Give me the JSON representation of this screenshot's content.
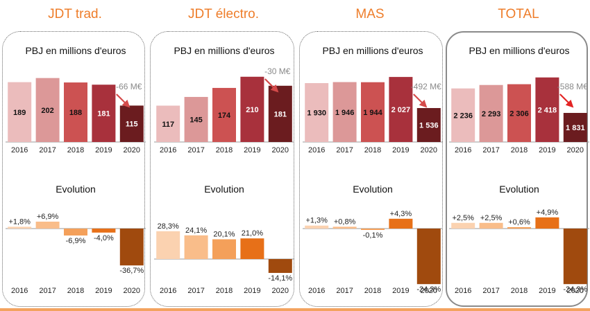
{
  "panels": [
    {
      "title": "JDT trad.",
      "pbj_title": "PBJ en millions d'euros",
      "evo_title": "Evolution",
      "delta_label": "-66 M€",
      "years": [
        "2016",
        "2017",
        "2018",
        "2019",
        "2020"
      ],
      "pbj_labels": [
        "189",
        "202",
        "188",
        "181",
        "115"
      ],
      "evo_labels": [
        "+1,8%",
        "+6,9%",
        "-6,9%",
        "-4,0%",
        "-36,7%"
      ]
    },
    {
      "title": "JDT électro.",
      "pbj_title": "PBJ en millions d'euros",
      "evo_title": "Evolution",
      "delta_label": "-30 M€",
      "years": [
        "2016",
        "2017",
        "2018",
        "2019",
        "2020"
      ],
      "pbj_labels": [
        "117",
        "145",
        "174",
        "210",
        "181"
      ],
      "evo_labels": [
        "28,3%",
        "24,1%",
        "20,1%",
        "21,0%",
        "-14,1%"
      ]
    },
    {
      "title": "MAS",
      "pbj_title": "PBJ en millions d'euros",
      "evo_title": "Evolution",
      "delta_label": "-492 M€",
      "years": [
        "2016",
        "2017",
        "2018",
        "2019",
        "2020"
      ],
      "pbj_labels": [
        "1 930",
        "1 946",
        "1 944",
        "2 027",
        "1 536"
      ],
      "evo_labels": [
        "+1,3%",
        "+0,8%",
        "-0,1%",
        "+4,3%",
        "-24,3%"
      ]
    },
    {
      "title": "TOTAL",
      "pbj_title": "PBJ en millions d'euros",
      "evo_title": "Evolution",
      "delta_label": "-588 M€",
      "years": [
        "2016",
        "2017",
        "2018",
        "2019",
        "2020"
      ],
      "pbj_labels": [
        "2 236",
        "2 293",
        "2 306",
        "2 418",
        "1 831"
      ],
      "evo_labels": [
        "+2,5%",
        "+2,5%",
        "+0,6%",
        "+4,9%",
        "-24,3%"
      ]
    }
  ],
  "colors": {
    "title": "#ee7d2a",
    "pbj_bars": [
      "#ebbcbc",
      "#dc9898",
      "#cc5252",
      "#a8313c",
      "#6b1c1f"
    ],
    "evo_pos_bars": [
      "#fbd2b0",
      "#f9bd8a",
      "#f4a05a",
      "#e77018"
    ],
    "evo_neg": [
      "#f4a05a",
      "#e77018",
      "#a04a0e"
    ],
    "arrow": "#d44a4a",
    "arrow_total": "#e32424"
  },
  "chart_data": [
    {
      "type": "bar",
      "title": "PBJ en millions d'euros",
      "panel": "JDT trad.",
      "categories": [
        "2016",
        "2017",
        "2018",
        "2019",
        "2020"
      ],
      "values": [
        189,
        202,
        188,
        181,
        115
      ]
    },
    {
      "type": "bar",
      "title": "Evolution",
      "panel": "JDT trad.",
      "categories": [
        "2016",
        "2017",
        "2018",
        "2019",
        "2020"
      ],
      "values": [
        1.8,
        6.9,
        -6.9,
        -4.0,
        -36.7
      ]
    },
    {
      "type": "bar",
      "title": "PBJ en millions d'euros",
      "panel": "JDT électro.",
      "categories": [
        "2016",
        "2017",
        "2018",
        "2019",
        "2020"
      ],
      "values": [
        117,
        145,
        174,
        210,
        181
      ]
    },
    {
      "type": "bar",
      "title": "Evolution",
      "panel": "JDT électro.",
      "categories": [
        "2016",
        "2017",
        "2018",
        "2019",
        "2020"
      ],
      "values": [
        28.3,
        24.1,
        20.1,
        21.0,
        -14.1
      ]
    },
    {
      "type": "bar",
      "title": "PBJ en millions d'euros",
      "panel": "MAS",
      "categories": [
        "2016",
        "2017",
        "2018",
        "2019",
        "2020"
      ],
      "values": [
        1930,
        1946,
        1944,
        2027,
        1536
      ]
    },
    {
      "type": "bar",
      "title": "Evolution",
      "panel": "MAS",
      "categories": [
        "2016",
        "2017",
        "2018",
        "2019",
        "2020"
      ],
      "values": [
        1.3,
        0.8,
        -0.1,
        4.3,
        -24.3
      ]
    },
    {
      "type": "bar",
      "title": "PBJ en millions d'euros",
      "panel": "TOTAL",
      "categories": [
        "2016",
        "2017",
        "2018",
        "2019",
        "2020"
      ],
      "values": [
        2236,
        2293,
        2306,
        2418,
        1831
      ]
    },
    {
      "type": "bar",
      "title": "Evolution",
      "panel": "TOTAL",
      "categories": [
        "2016",
        "2017",
        "2018",
        "2019",
        "2020"
      ],
      "values": [
        2.5,
        2.5,
        0.6,
        4.9,
        -24.3
      ]
    }
  ]
}
